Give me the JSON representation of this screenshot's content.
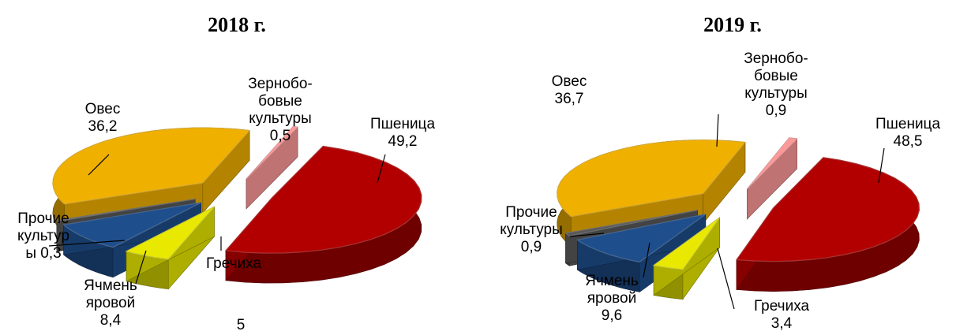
{
  "chart_data": [
    {
      "type": "pie",
      "title": "2018 г.",
      "slices": [
        {
          "label": [
            "Пшеница"
          ],
          "value": 49.2,
          "value_text": "49,2",
          "color": "#b20000"
        },
        {
          "label": [
            "Гречиха"
          ],
          "value": 5,
          "value_text": "5",
          "color": "#e8e800"
        },
        {
          "label": [
            "Ячмень",
            "яровой"
          ],
          "value": 8.4,
          "value_text": "8,4",
          "color": "#1f4e8c"
        },
        {
          "label": [
            "Прочие",
            "культур",
            "ы"
          ],
          "value": 0.3,
          "value_text": "0,3",
          "color": "#595959"
        },
        {
          "label": [
            "Овес"
          ],
          "value": 36.2,
          "value_text": "36,2",
          "color": "#f0b000"
        },
        {
          "label": [
            "Зернобо-",
            "бовые",
            "культуры"
          ],
          "value": 0.5,
          "value_text": "0,5",
          "color": "#ff9999"
        }
      ]
    },
    {
      "type": "pie",
      "title": "2019 г.",
      "slices": [
        {
          "label": [
            "Пшеница"
          ],
          "value": 48.5,
          "value_text": "48,5",
          "color": "#b20000"
        },
        {
          "label": [
            "Гречиха"
          ],
          "value": 3.4,
          "value_text": "3,4",
          "color": "#e8e800"
        },
        {
          "label": [
            "Ячмень",
            "яровой"
          ],
          "value": 9.6,
          "value_text": "9,6",
          "color": "#1f4e8c"
        },
        {
          "label": [
            "Прочие",
            "культуры"
          ],
          "value": 0.9,
          "value_text": "0,9",
          "color": "#595959"
        },
        {
          "label": [
            "Овес"
          ],
          "value": 36.7,
          "value_text": "36,7",
          "color": "#f0b000"
        },
        {
          "label": [
            "Зернобо-",
            "бовые",
            "культуры"
          ],
          "value": 0.9,
          "value_text": "0,9",
          "color": "#ff9999"
        }
      ]
    }
  ]
}
